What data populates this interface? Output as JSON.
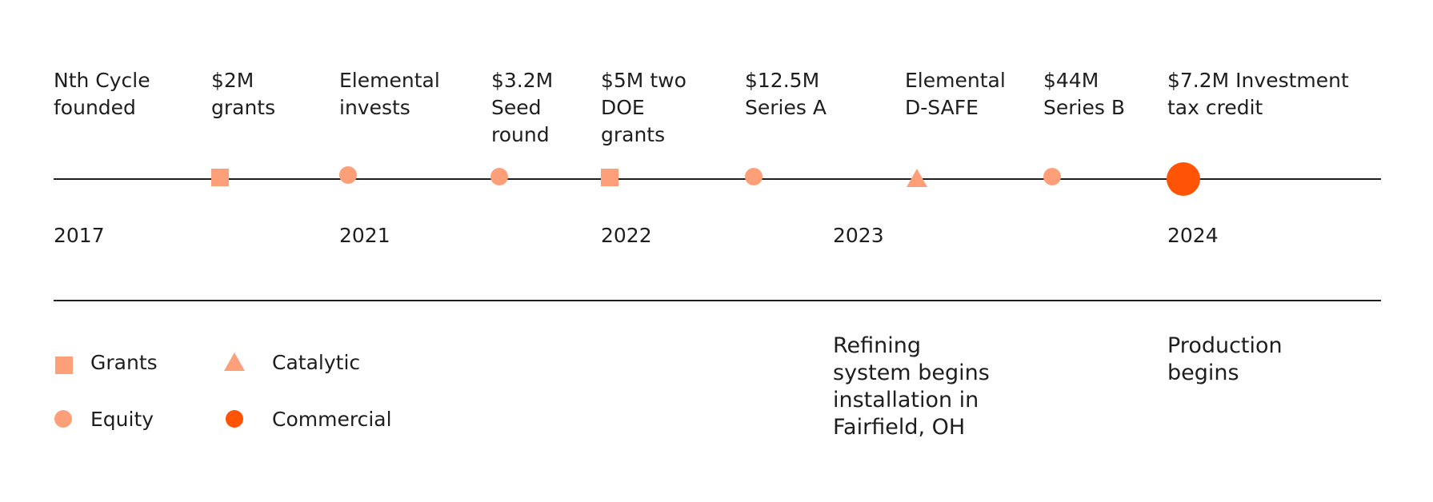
{
  "events": [
    {
      "label": "Nth Cycle\nfounded",
      "marker": "none"
    },
    {
      "label": "$2M\ngrants",
      "marker": "square"
    },
    {
      "label": "Elemental\ninvests",
      "marker": "circle"
    },
    {
      "label": "$3.2M\nSeed\nround",
      "marker": "circle"
    },
    {
      "label": "$5M two\nDOE\ngrants",
      "marker": "square"
    },
    {
      "label": "$12.5M\nSeries A",
      "marker": "circle"
    },
    {
      "label": "Elemental\nD-SAFE",
      "marker": "triangle"
    },
    {
      "label": "$44M\nSeries B",
      "marker": "circle"
    },
    {
      "label": "$7.2M Investment\ntax credit",
      "marker": "circle-big"
    }
  ],
  "years": [
    "2017",
    "2021",
    "2022",
    "2023",
    "2024"
  ],
  "notes": [
    "Refining\nsystem begins\ninstallation in\nFairfield, OH",
    "Production\nbegins"
  ],
  "legend": [
    {
      "label": "Grants",
      "shape": "square",
      "color": "#fda07a"
    },
    {
      "label": "Catalytic",
      "shape": "triangle",
      "color": "#fda07a"
    },
    {
      "label": "Equity",
      "shape": "circle",
      "color": "#fda07a"
    },
    {
      "label": "Commercial",
      "shape": "circle",
      "color": "#ff5405"
    }
  ],
  "colors": {
    "light_orange": "#fda07a",
    "dark_orange": "#ff5405",
    "line": "#1e1e1e"
  }
}
